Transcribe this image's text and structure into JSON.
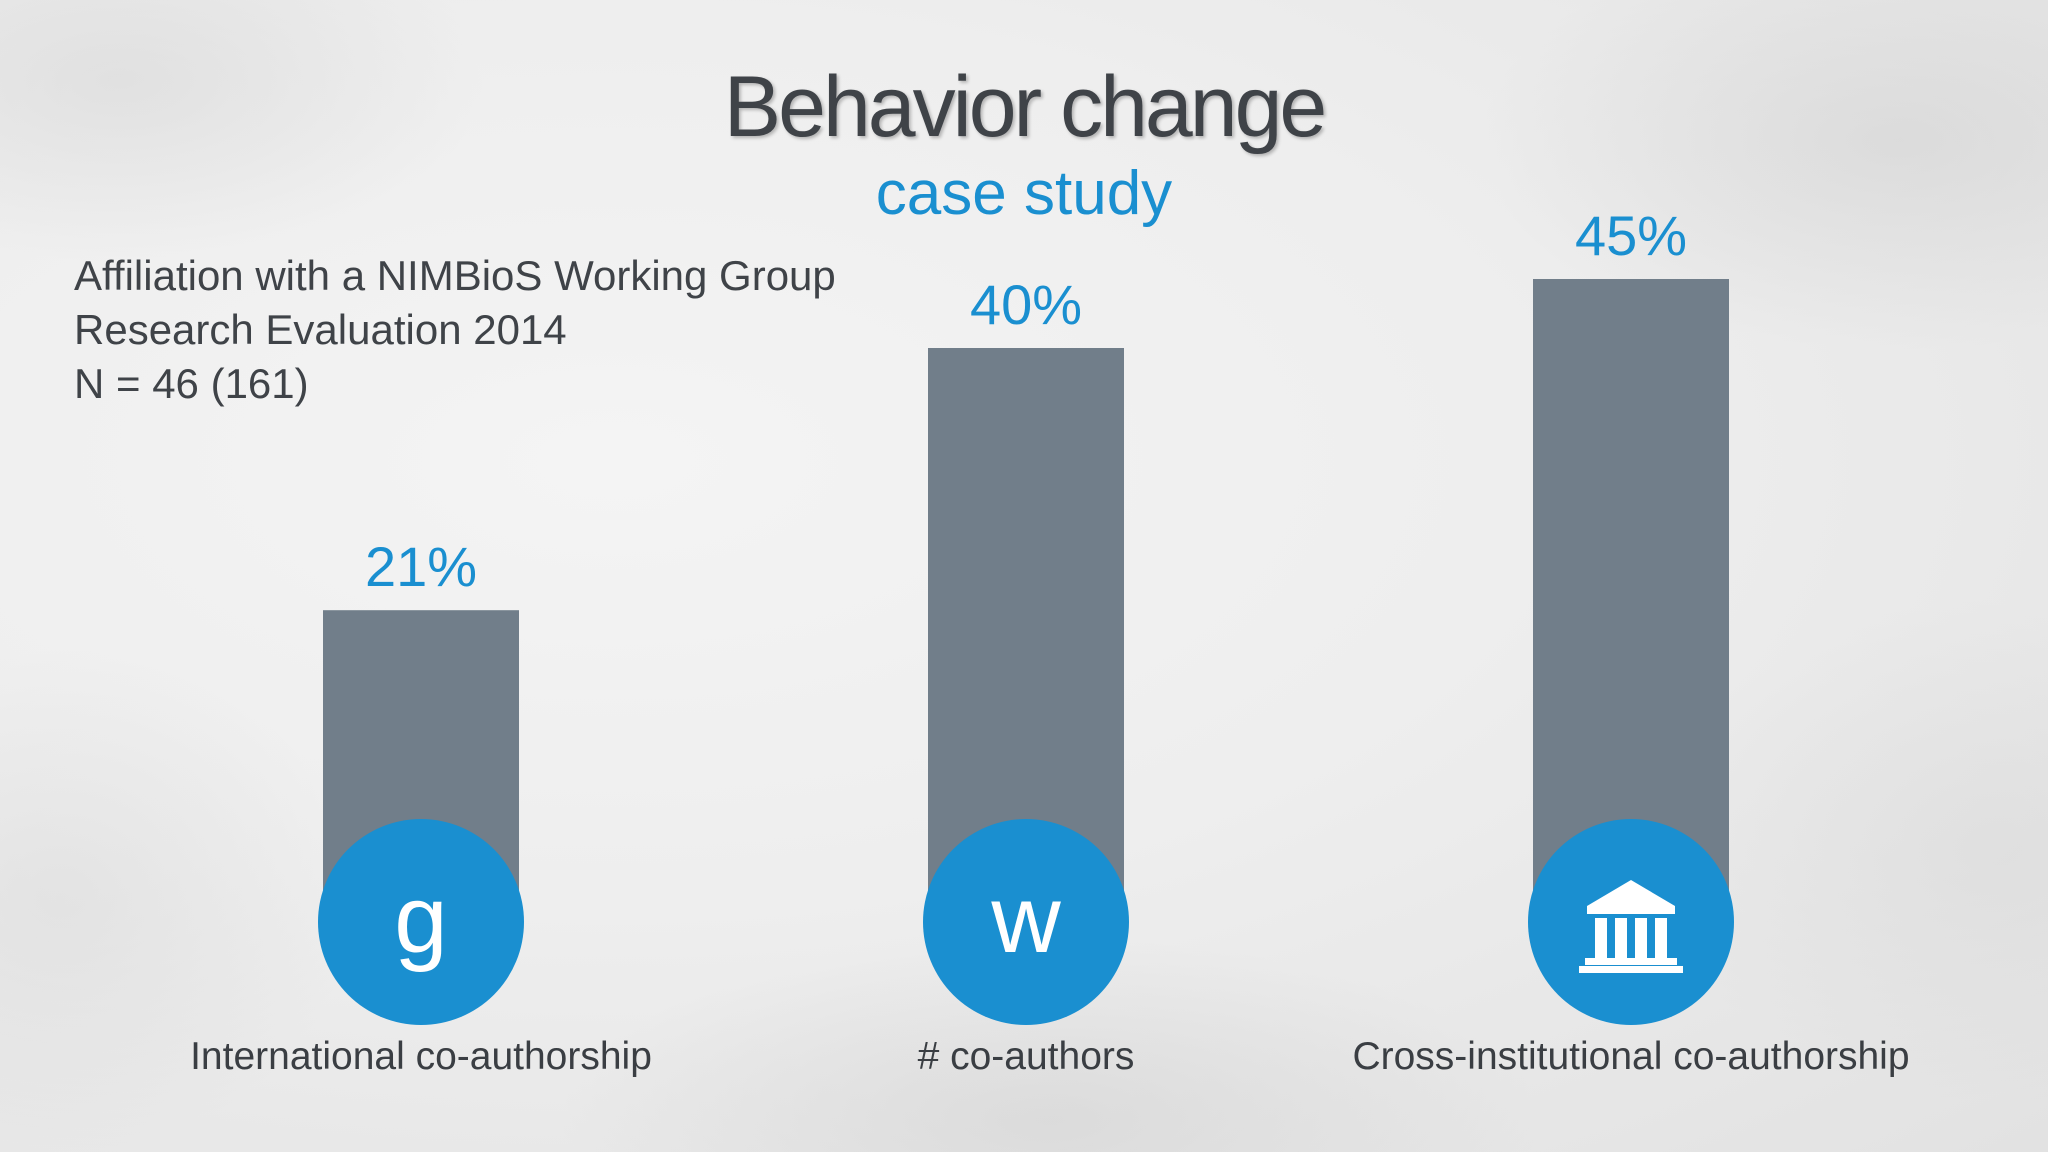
{
  "slide": {
    "title": "Behavior change",
    "subtitle": "case study",
    "meta": [
      "Affiliation with a NIMBioS Working Group",
      "Research Evaluation 2014",
      "N = 46 (161)"
    ]
  },
  "colors": {
    "bar": "#717e8a",
    "accent": "#1a8fd0",
    "text": "#3f4348"
  },
  "chart_data": {
    "type": "bar",
    "categories": [
      "International co-authorship",
      "# co-authors",
      "Cross-institutional co-authorship"
    ],
    "values": [
      21,
      40,
      45
    ],
    "value_labels": [
      "21%",
      "40%",
      "45%"
    ],
    "icons": [
      {
        "name": "letter-g-icon",
        "glyph": "g"
      },
      {
        "name": "letter-w-icon",
        "glyph": "w"
      },
      {
        "name": "institution-building-icon",
        "glyph": ""
      }
    ],
    "grid": false,
    "legend": "none"
  }
}
